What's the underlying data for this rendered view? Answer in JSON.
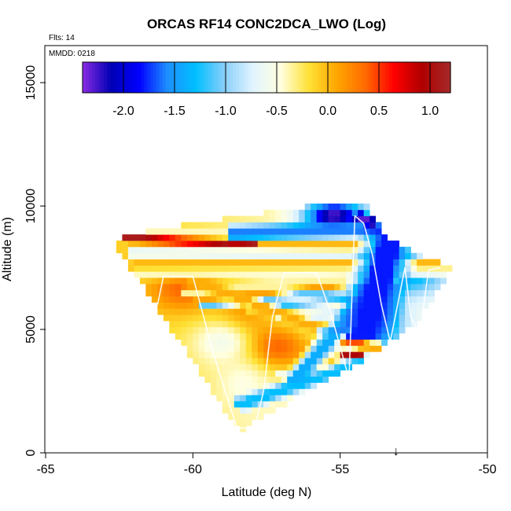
{
  "chart_data": {
    "type": "heatmap",
    "title": "ORCAS RF14 CONC2DCA_LWO (Log)",
    "xlabel": "Latitude (deg N)",
    "ylabel": "Altitude (m)",
    "xlim": [
      -65,
      -50
    ],
    "ylim": [
      0,
      16500
    ],
    "x_ticks": [
      -65,
      -60,
      -55,
      -50
    ],
    "x_tick_labels": [
      "-65",
      "-60",
      "-55",
      "-50"
    ],
    "y_ticks": [
      0,
      5000,
      10000,
      15000
    ],
    "y_tick_labels": [
      "0",
      "5000",
      "10000",
      "15000"
    ],
    "annotations": {
      "flights": "Flts: 14",
      "date": "MMDD: 0218"
    },
    "marker": {
      "label": "↓",
      "latitude": -53.1,
      "altitude": 0
    },
    "colorbar": {
      "range": [
        -2.4,
        1.2
      ],
      "ticks": [
        -2.0,
        -1.5,
        -1.0,
        -0.5,
        0.0,
        0.5,
        1.0
      ],
      "tick_labels": [
        "-2.0",
        "-1.5",
        "-1.0",
        "-0.5",
        "0.0",
        "0.5",
        "1.0"
      ],
      "colors": [
        "#8a2be2",
        "#0000b4",
        "#0000ff",
        "#1e90ff",
        "#00bfff",
        "#87cefa",
        "#e0f4ff",
        "#ffffe0",
        "#ffe135",
        "#ffa500",
        "#ff6a00",
        "#ff0000",
        "#b00000",
        "#a52a2a"
      ]
    },
    "flight_track": [
      [
        -61.2,
        6000
      ],
      [
        -61.0,
        7150
      ],
      [
        -60.0,
        7150
      ],
      [
        -59.9,
        6700
      ],
      [
        -59.3,
        4000
      ],
      [
        -58.5,
        1000
      ],
      [
        -57.9,
        1000
      ],
      [
        -57.6,
        2500
      ],
      [
        -57.3,
        5500
      ],
      [
        -56.9,
        7300
      ],
      [
        -55.8,
        7300
      ],
      [
        -55.3,
        5600
      ],
      [
        -54.7,
        3000
      ],
      [
        -54.5,
        9600
      ],
      [
        -54.2,
        9300
      ],
      [
        -53.9,
        8000
      ],
      [
        -53.6,
        6000
      ],
      [
        -53.3,
        4500
      ],
      [
        -52.8,
        7500
      ],
      [
        -52.6,
        5500
      ],
      [
        -52.3,
        4800
      ],
      [
        -52.0,
        7400
      ],
      [
        -51.6,
        7500
      ]
    ],
    "bands": [
      {
        "x1": -61.5,
        "y1": 7400,
        "x2": -51.2,
        "y2": 7450,
        "w": 500,
        "value": -0.45
      },
      {
        "x1": -61.5,
        "y1": 7700,
        "x2": -51.5,
        "y2": 7800,
        "w": 400,
        "value": 0.0
      },
      {
        "x1": -61.7,
        "y1": 8150,
        "x2": -51.8,
        "y2": 8100,
        "w": 300,
        "value": -0.9
      },
      {
        "x1": -61.7,
        "y1": 8500,
        "x2": -52.5,
        "y2": 8400,
        "w": 350,
        "value": 0.0
      },
      {
        "x1": -62.5,
        "y1": 8700,
        "x2": -58.0,
        "y2": 8500,
        "w": 200,
        "value": 1.1
      },
      {
        "x1": -62.5,
        "y1": 9000,
        "x2": -53.0,
        "y2": 8750,
        "w": 250,
        "value": -0.4
      },
      {
        "x1": -58.5,
        "y1": 8900,
        "x2": -52.7,
        "y2": 9150,
        "w": 450,
        "value": -1.6
      },
      {
        "x1": -60.0,
        "y1": 6500,
        "x2": -53.2,
        "y2": 7200,
        "w": 260,
        "value": -0.35
      },
      {
        "x1": -59.5,
        "y1": 6000,
        "x2": -53.5,
        "y2": 6800,
        "w": 220,
        "value": -1.1
      },
      {
        "x1": -59.6,
        "y1": 6250,
        "x2": -53.3,
        "y2": 7000,
        "w": 150,
        "value": 0.1
      },
      {
        "x1": -58.0,
        "y1": 5900,
        "x2": -53.8,
        "y2": 6300,
        "w": 200,
        "value": -1.2
      },
      {
        "x1": -57.0,
        "y1": 5500,
        "x2": -54.0,
        "y2": 5700,
        "w": 180,
        "value": -1.0
      },
      {
        "x1": -59.8,
        "y1": 6900,
        "x2": -54.0,
        "y2": 4300,
        "w": 300,
        "value": 0.05
      },
      {
        "x1": -55.3,
        "y1": 4600,
        "x2": -54.3,
        "y2": 4400,
        "w": 220,
        "value": 0.45
      },
      {
        "x1": -55.0,
        "y1": 4000,
        "x2": -54.3,
        "y2": 4000,
        "w": 200,
        "value": 1.0
      },
      {
        "x1": -58.3,
        "y1": 2000,
        "x2": -54.4,
        "y2": 3600,
        "w": 380,
        "value": -1.3
      },
      {
        "x1": -56.5,
        "y1": 3000,
        "x2": -53.6,
        "y2": 7000,
        "w": 280,
        "value": -1.4
      },
      {
        "x1": -54.2,
        "y1": 4800,
        "x2": -53.2,
        "y2": 9000,
        "w": 260,
        "value": -1.8
      },
      {
        "x1": -54.4,
        "y1": 9600,
        "x2": -53.8,
        "y2": 9300,
        "w": 250,
        "value": -2.3
      }
    ],
    "fields": [
      {
        "x": -60.3,
        "y": 6700,
        "value": 0.45,
        "sx": 1.2,
        "sy": 1000,
        "weight": 1.0
      },
      {
        "x": -58.3,
        "y": 5600,
        "value": 0.35,
        "sx": 1.0,
        "sy": 900,
        "weight": 0.8
      },
      {
        "x": -57.2,
        "y": 4300,
        "value": 0.5,
        "sx": 1.2,
        "sy": 900,
        "weight": 1.0
      },
      {
        "x": -55.8,
        "y": 3500,
        "value": 0.45,
        "sx": 0.7,
        "sy": 800,
        "weight": 0.7
      },
      {
        "x": -59.0,
        "y": 4500,
        "value": -0.6,
        "sx": 1.0,
        "sy": 900,
        "weight": 1.0
      },
      {
        "x": -58.3,
        "y": 2800,
        "value": -0.5,
        "sx": 0.8,
        "sy": 1000,
        "weight": 1.0
      },
      {
        "x": -56.8,
        "y": 6300,
        "value": -0.7,
        "sx": 1.0,
        "sy": 600,
        "weight": 0.6
      },
      {
        "x": -52.5,
        "y": 7500,
        "value": -1.6,
        "sx": 1.0,
        "sy": 900,
        "weight": 1.2
      },
      {
        "x": -55.2,
        "y": 9600,
        "value": -2.2,
        "sx": 1.0,
        "sy": 600,
        "weight": 1.2
      },
      {
        "x": -53.5,
        "y": 5500,
        "value": -1.8,
        "sx": 0.7,
        "sy": 1500,
        "weight": 0.8
      }
    ]
  }
}
